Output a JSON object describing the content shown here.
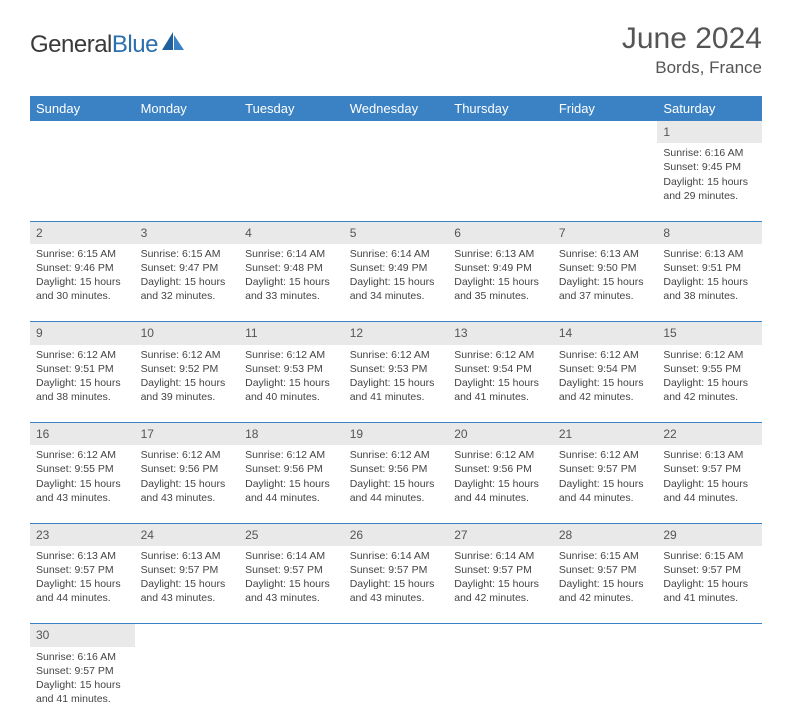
{
  "brand": {
    "name1": "General",
    "name2": "Blue"
  },
  "title": "June 2024",
  "location": "Bords, France",
  "colors": {
    "header_bg": "#3b82c4",
    "header_fg": "#ffffff",
    "daynum_bg": "#e9e9e9",
    "row_divider": "#3b82c4",
    "text": "#444444",
    "logo_dark": "#3a3a3a",
    "logo_blue": "#2c6fad"
  },
  "weekdays": [
    "Sunday",
    "Monday",
    "Tuesday",
    "Wednesday",
    "Thursday",
    "Friday",
    "Saturday"
  ],
  "weeks": [
    [
      null,
      null,
      null,
      null,
      null,
      null,
      {
        "d": "1",
        "sr": "Sunrise: 6:16 AM",
        "ss": "Sunset: 9:45 PM",
        "dl": "Daylight: 15 hours and 29 minutes."
      }
    ],
    [
      {
        "d": "2",
        "sr": "Sunrise: 6:15 AM",
        "ss": "Sunset: 9:46 PM",
        "dl": "Daylight: 15 hours and 30 minutes."
      },
      {
        "d": "3",
        "sr": "Sunrise: 6:15 AM",
        "ss": "Sunset: 9:47 PM",
        "dl": "Daylight: 15 hours and 32 minutes."
      },
      {
        "d": "4",
        "sr": "Sunrise: 6:14 AM",
        "ss": "Sunset: 9:48 PM",
        "dl": "Daylight: 15 hours and 33 minutes."
      },
      {
        "d": "5",
        "sr": "Sunrise: 6:14 AM",
        "ss": "Sunset: 9:49 PM",
        "dl": "Daylight: 15 hours and 34 minutes."
      },
      {
        "d": "6",
        "sr": "Sunrise: 6:13 AM",
        "ss": "Sunset: 9:49 PM",
        "dl": "Daylight: 15 hours and 35 minutes."
      },
      {
        "d": "7",
        "sr": "Sunrise: 6:13 AM",
        "ss": "Sunset: 9:50 PM",
        "dl": "Daylight: 15 hours and 37 minutes."
      },
      {
        "d": "8",
        "sr": "Sunrise: 6:13 AM",
        "ss": "Sunset: 9:51 PM",
        "dl": "Daylight: 15 hours and 38 minutes."
      }
    ],
    [
      {
        "d": "9",
        "sr": "Sunrise: 6:12 AM",
        "ss": "Sunset: 9:51 PM",
        "dl": "Daylight: 15 hours and 38 minutes."
      },
      {
        "d": "10",
        "sr": "Sunrise: 6:12 AM",
        "ss": "Sunset: 9:52 PM",
        "dl": "Daylight: 15 hours and 39 minutes."
      },
      {
        "d": "11",
        "sr": "Sunrise: 6:12 AM",
        "ss": "Sunset: 9:53 PM",
        "dl": "Daylight: 15 hours and 40 minutes."
      },
      {
        "d": "12",
        "sr": "Sunrise: 6:12 AM",
        "ss": "Sunset: 9:53 PM",
        "dl": "Daylight: 15 hours and 41 minutes."
      },
      {
        "d": "13",
        "sr": "Sunrise: 6:12 AM",
        "ss": "Sunset: 9:54 PM",
        "dl": "Daylight: 15 hours and 41 minutes."
      },
      {
        "d": "14",
        "sr": "Sunrise: 6:12 AM",
        "ss": "Sunset: 9:54 PM",
        "dl": "Daylight: 15 hours and 42 minutes."
      },
      {
        "d": "15",
        "sr": "Sunrise: 6:12 AM",
        "ss": "Sunset: 9:55 PM",
        "dl": "Daylight: 15 hours and 42 minutes."
      }
    ],
    [
      {
        "d": "16",
        "sr": "Sunrise: 6:12 AM",
        "ss": "Sunset: 9:55 PM",
        "dl": "Daylight: 15 hours and 43 minutes."
      },
      {
        "d": "17",
        "sr": "Sunrise: 6:12 AM",
        "ss": "Sunset: 9:56 PM",
        "dl": "Daylight: 15 hours and 43 minutes."
      },
      {
        "d": "18",
        "sr": "Sunrise: 6:12 AM",
        "ss": "Sunset: 9:56 PM",
        "dl": "Daylight: 15 hours and 44 minutes."
      },
      {
        "d": "19",
        "sr": "Sunrise: 6:12 AM",
        "ss": "Sunset: 9:56 PM",
        "dl": "Daylight: 15 hours and 44 minutes."
      },
      {
        "d": "20",
        "sr": "Sunrise: 6:12 AM",
        "ss": "Sunset: 9:56 PM",
        "dl": "Daylight: 15 hours and 44 minutes."
      },
      {
        "d": "21",
        "sr": "Sunrise: 6:12 AM",
        "ss": "Sunset: 9:57 PM",
        "dl": "Daylight: 15 hours and 44 minutes."
      },
      {
        "d": "22",
        "sr": "Sunrise: 6:13 AM",
        "ss": "Sunset: 9:57 PM",
        "dl": "Daylight: 15 hours and 44 minutes."
      }
    ],
    [
      {
        "d": "23",
        "sr": "Sunrise: 6:13 AM",
        "ss": "Sunset: 9:57 PM",
        "dl": "Daylight: 15 hours and 44 minutes."
      },
      {
        "d": "24",
        "sr": "Sunrise: 6:13 AM",
        "ss": "Sunset: 9:57 PM",
        "dl": "Daylight: 15 hours and 43 minutes."
      },
      {
        "d": "25",
        "sr": "Sunrise: 6:14 AM",
        "ss": "Sunset: 9:57 PM",
        "dl": "Daylight: 15 hours and 43 minutes."
      },
      {
        "d": "26",
        "sr": "Sunrise: 6:14 AM",
        "ss": "Sunset: 9:57 PM",
        "dl": "Daylight: 15 hours and 43 minutes."
      },
      {
        "d": "27",
        "sr": "Sunrise: 6:14 AM",
        "ss": "Sunset: 9:57 PM",
        "dl": "Daylight: 15 hours and 42 minutes."
      },
      {
        "d": "28",
        "sr": "Sunrise: 6:15 AM",
        "ss": "Sunset: 9:57 PM",
        "dl": "Daylight: 15 hours and 42 minutes."
      },
      {
        "d": "29",
        "sr": "Sunrise: 6:15 AM",
        "ss": "Sunset: 9:57 PM",
        "dl": "Daylight: 15 hours and 41 minutes."
      }
    ],
    [
      {
        "d": "30",
        "sr": "Sunrise: 6:16 AM",
        "ss": "Sunset: 9:57 PM",
        "dl": "Daylight: 15 hours and 41 minutes."
      },
      null,
      null,
      null,
      null,
      null,
      null
    ]
  ]
}
